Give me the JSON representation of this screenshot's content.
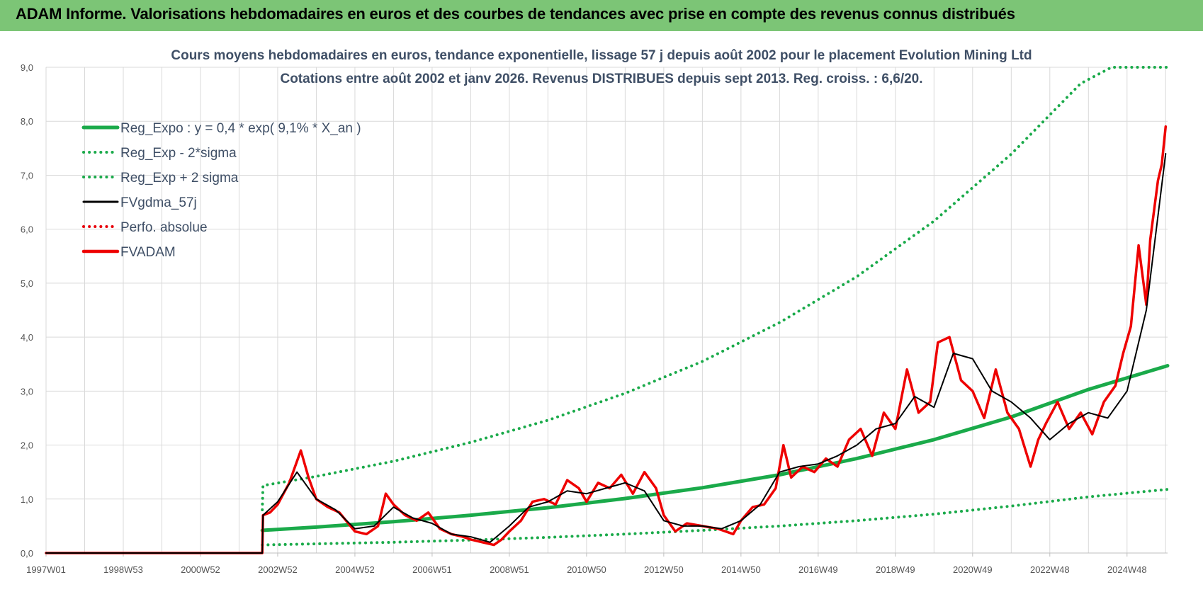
{
  "banner": {
    "title": "ADAM Informe. Valorisations hebdomadaires en euros et des courbes de tendances avec prise en compte des revenus connus distribués",
    "background": "#7cc576",
    "accent": "#f0b400"
  },
  "chart_data": {
    "type": "line",
    "title": "Cours moyens hebdomadaires en euros, tendance exponentielle, lissage 57 j depuis août 2002 pour le placement Evolution Mining Ltd",
    "subtitle": "Cotations entre août 2002 et janv 2026. Revenus DISTRIBUES depuis sept 2013. Reg. croiss. : 6,6/20.",
    "xlabel": "",
    "ylabel": "",
    "x_tick_labels": [
      "1997W01",
      "1998W53",
      "2000W52",
      "2002W52",
      "2004W52",
      "2006W51",
      "2008W51",
      "2010W50",
      "2012W50",
      "2014W50",
      "2016W49",
      "2018W49",
      "2020W49",
      "2022W48",
      "2024W48"
    ],
    "x_tick_years": [
      1997.0,
      1999.0,
      2001.0,
      2003.0,
      2005.0,
      2007.0,
      2009.0,
      2011.0,
      2013.0,
      2015.0,
      2017.0,
      2019.0,
      2021.0,
      2023.0,
      2025.0
    ],
    "xlim": [
      1997.0,
      2026.05
    ],
    "ylim": [
      0,
      9
    ],
    "y_ticks": [
      "0,0",
      "1,0",
      "2,0",
      "3,0",
      "4,0",
      "5,0",
      "6,0",
      "7,0",
      "8,0",
      "9,0"
    ],
    "grid": true,
    "legend_position": "top-left",
    "series": [
      {
        "name": "Reg_Expo : y = 0,4 * exp( 9,1% *  X_an )",
        "color": "#1aaa4a",
        "style": "solid",
        "width": 5,
        "x": [
          2002.6,
          2004,
          2006,
          2008,
          2010,
          2012,
          2014,
          2016,
          2018,
          2020,
          2022,
          2024,
          2026.05
        ],
        "y": [
          0.42,
          0.48,
          0.58,
          0.7,
          0.84,
          1.01,
          1.21,
          1.45,
          1.75,
          2.1,
          2.52,
          3.03,
          3.47
        ]
      },
      {
        "name": "Reg_Exp - 2*sigma",
        "color": "#1aaa4a",
        "style": "dotted",
        "width": 4,
        "x": [
          2002.6,
          2004,
          2006,
          2008,
          2010,
          2012,
          2014,
          2016,
          2018,
          2020,
          2022,
          2024,
          2026.05
        ],
        "y": [
          0.15,
          0.17,
          0.2,
          0.24,
          0.29,
          0.35,
          0.42,
          0.5,
          0.6,
          0.72,
          0.87,
          1.04,
          1.18
        ]
      },
      {
        "name": "Reg_Exp + 2 sigma",
        "color": "#1aaa4a",
        "style": "dotted",
        "width": 4,
        "x": [
          2002.6,
          2002.62,
          2004,
          2006,
          2008,
          2010,
          2012,
          2014,
          2016,
          2018,
          2020,
          2022,
          2023.8,
          2024.6,
          2026.05
        ],
        "y": [
          0.8,
          1.25,
          1.42,
          1.7,
          2.05,
          2.46,
          2.96,
          3.55,
          4.27,
          5.12,
          6.15,
          7.39,
          8.7,
          9.0,
          9.0
        ]
      },
      {
        "name": "FVgdma_57j",
        "color": "#000000",
        "style": "solid",
        "width": 2,
        "x": [
          1997.0,
          2002.6,
          2002.62,
          2003.0,
          2003.5,
          2004.0,
          2004.5,
          2005.0,
          2005.5,
          2006.0,
          2006.5,
          2007.0,
          2007.5,
          2008.0,
          2008.5,
          2009.0,
          2009.5,
          2010.0,
          2010.5,
          2011.0,
          2011.5,
          2012.0,
          2012.5,
          2013.0,
          2013.5,
          2014.0,
          2014.5,
          2015.0,
          2015.5,
          2016.0,
          2016.5,
          2017.0,
          2017.5,
          2018.0,
          2018.5,
          2019.0,
          2019.5,
          2020.0,
          2020.5,
          2021.0,
          2021.5,
          2022.0,
          2022.5,
          2023.0,
          2023.5,
          2024.0,
          2024.5,
          2025.0,
          2025.5,
          2026.0
        ],
        "y": [
          0.0,
          0.0,
          0.7,
          0.95,
          1.5,
          1.0,
          0.8,
          0.45,
          0.5,
          0.85,
          0.65,
          0.55,
          0.35,
          0.3,
          0.2,
          0.5,
          0.85,
          0.95,
          1.15,
          1.1,
          1.2,
          1.3,
          1.15,
          0.6,
          0.5,
          0.5,
          0.45,
          0.6,
          0.9,
          1.5,
          1.6,
          1.65,
          1.8,
          2.0,
          2.3,
          2.4,
          2.9,
          2.7,
          3.7,
          3.6,
          3.0,
          2.8,
          2.5,
          2.1,
          2.4,
          2.6,
          2.5,
          3.0,
          4.5,
          7.4
        ]
      },
      {
        "name": "Perfo. absolue",
        "color": "#e8000b",
        "style": "dotted",
        "width": 3,
        "x": [],
        "y": []
      },
      {
        "name": "FVADAM",
        "color": "#ee0000",
        "style": "solid",
        "width": 3.5,
        "x": [
          1997.0,
          2002.6,
          2002.62,
          2002.8,
          2003.0,
          2003.3,
          2003.6,
          2003.8,
          2004.0,
          2004.3,
          2004.6,
          2005.0,
          2005.3,
          2005.6,
          2005.8,
          2006.0,
          2006.3,
          2006.6,
          2006.9,
          2007.2,
          2007.5,
          2007.8,
          2008.0,
          2008.3,
          2008.6,
          2008.8,
          2009.0,
          2009.3,
          2009.6,
          2009.9,
          2010.2,
          2010.5,
          2010.8,
          2011.0,
          2011.3,
          2011.6,
          2011.9,
          2012.2,
          2012.5,
          2012.8,
          2013.0,
          2013.3,
          2013.6,
          2014.0,
          2014.4,
          2014.8,
          2015.0,
          2015.3,
          2015.6,
          2015.9,
          2016.1,
          2016.3,
          2016.6,
          2016.9,
          2017.2,
          2017.5,
          2017.8,
          2018.1,
          2018.4,
          2018.7,
          2019.0,
          2019.3,
          2019.6,
          2019.9,
          2020.1,
          2020.4,
          2020.7,
          2021.0,
          2021.3,
          2021.6,
          2021.9,
          2022.2,
          2022.5,
          2022.7,
          2022.9,
          2023.2,
          2023.5,
          2023.8,
          2024.1,
          2024.4,
          2024.7,
          2024.9,
          2025.1,
          2025.3,
          2025.5,
          2025.6,
          2025.8,
          2025.9,
          2026.0
        ],
        "y": [
          0.0,
          0.0,
          0.7,
          0.75,
          0.9,
          1.3,
          1.9,
          1.4,
          1.0,
          0.85,
          0.75,
          0.4,
          0.35,
          0.5,
          1.1,
          0.9,
          0.7,
          0.6,
          0.75,
          0.45,
          0.35,
          0.3,
          0.25,
          0.2,
          0.15,
          0.25,
          0.4,
          0.6,
          0.95,
          1.0,
          0.9,
          1.35,
          1.2,
          0.95,
          1.3,
          1.2,
          1.45,
          1.1,
          1.5,
          1.2,
          0.7,
          0.4,
          0.55,
          0.5,
          0.45,
          0.35,
          0.6,
          0.85,
          0.9,
          1.2,
          2.0,
          1.4,
          1.6,
          1.5,
          1.75,
          1.6,
          2.1,
          2.3,
          1.8,
          2.6,
          2.3,
          3.4,
          2.6,
          2.8,
          3.9,
          4.0,
          3.2,
          3.0,
          2.5,
          3.4,
          2.6,
          2.3,
          1.6,
          2.1,
          2.4,
          2.8,
          2.3,
          2.6,
          2.2,
          2.8,
          3.1,
          3.7,
          4.2,
          5.7,
          4.6,
          5.8,
          6.9,
          7.2,
          7.9
        ]
      }
    ]
  }
}
